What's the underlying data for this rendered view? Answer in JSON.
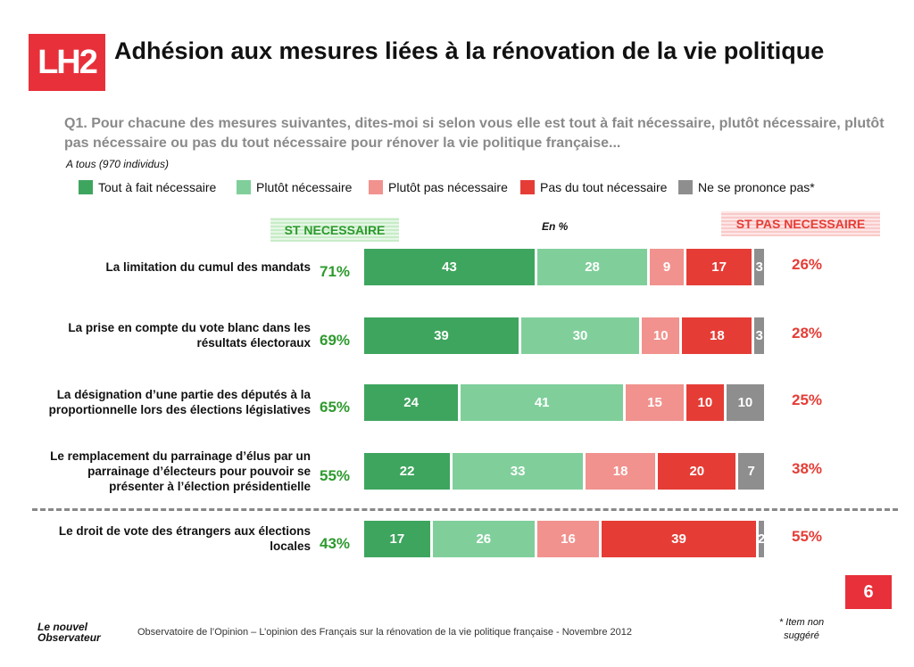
{
  "logo": "LH2",
  "chart_data": {
    "type": "stacked-bar",
    "orientation": "horizontal",
    "title": "Adhésion aux mesures liées à la rénovation de la vie politique",
    "subtitle": "Q1. Pour chacune des mesures suivantes, dites-moi si selon vous elle est tout à fait nécessaire, plutôt nécessaire, plutôt pas nécessaire ou pas du tout nécessaire pour rénover la vie politique française...",
    "base_note": "A tous (970 individus)",
    "unit_note": "En %",
    "categories": [
      "La limitation du cumul des mandats",
      "La prise en compte du vote blanc dans les résultats électoraux",
      "La désignation d’une partie des députés à la proportionnelle lors des élections législatives",
      "Le remplacement du parrainage d’élus par un parrainage d’électeurs pour pouvoir se présenter à l’élection présidentielle",
      "Le droit de vote des étrangers aux élections locales"
    ],
    "series": [
      {
        "name": "Tout à fait nécessaire",
        "color": "#3ea55e",
        "values": [
          43,
          39,
          24,
          22,
          17
        ]
      },
      {
        "name": "Plutôt nécessaire",
        "color": "#80cf9b",
        "values": [
          28,
          30,
          41,
          33,
          26
        ]
      },
      {
        "name": "Plutôt pas nécessaire",
        "color": "#f1928e",
        "values": [
          9,
          10,
          15,
          18,
          16
        ]
      },
      {
        "name": "Pas du tout nécessaire",
        "color": "#e53d36",
        "values": [
          17,
          18,
          10,
          20,
          39
        ]
      },
      {
        "name": "Ne se prononce pas*",
        "color": "#8e8e8e",
        "values": [
          3,
          3,
          10,
          7,
          2
        ]
      }
    ],
    "summary_left": {
      "name": "ST NECESSAIRE",
      "color": "#2e9a2e",
      "values": [
        71,
        69,
        65,
        55,
        43
      ],
      "value_labels": [
        "71%",
        "69%",
        "65%",
        "55%",
        "43%"
      ]
    },
    "summary_right": {
      "name": "ST PAS NECESSAIRE",
      "color": "#e53d36",
      "values": [
        26,
        28,
        25,
        38,
        55
      ],
      "value_labels": [
        "26%",
        "28%",
        "25%",
        "38%",
        "55%"
      ]
    }
  },
  "page_number": "6",
  "footer": {
    "publisher": "Le nouvel Observateur",
    "source": "Observatoire de l’Opinion – L’opinion des Français sur la rénovation de la vie politique française - Novembre 2012",
    "footnote": "* Item non suggéré"
  }
}
